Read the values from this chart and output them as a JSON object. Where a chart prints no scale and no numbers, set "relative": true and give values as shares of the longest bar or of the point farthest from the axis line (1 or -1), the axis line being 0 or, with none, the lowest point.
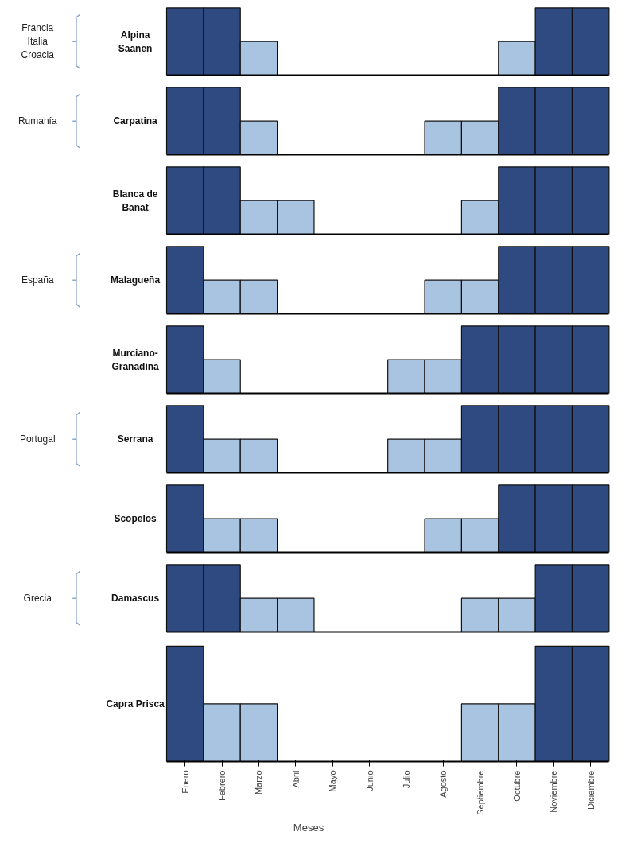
{
  "chart_data": [
    {
      "type": "bar",
      "relative": true,
      "ylabel": "Alpina\nSaanen",
      "annotations": [
        "Francia\nItalia\nCroacia"
      ],
      "tick_labels": false,
      "categories": [
        "Enero",
        "Febrero",
        "Marzo",
        "Abril",
        "Mayo",
        "Junio",
        "Julio",
        "Agosto",
        "Septiembre",
        "Octubre",
        "Noviembre",
        "Diciembre"
      ],
      "values": [
        1,
        1,
        0.5,
        0,
        0,
        0,
        0,
        0,
        0,
        0.5,
        1,
        1
      ],
      "colors": [
        "#2e4a80",
        "#2e4a80",
        "#a9c4e0",
        "#a9c4e0",
        "#a9c4e0",
        "#a9c4e0",
        "#a9c4e0",
        "#a9c4e0",
        "#a9c4e0",
        "#a9c4e0",
        "#2e4a80",
        "#2e4a80"
      ]
    },
    {
      "type": "bar",
      "relative": true,
      "ylabel": "Carpatina",
      "annotations": [
        "Rumanía"
      ],
      "tick_labels": false,
      "categories": [
        "Enero",
        "Febrero",
        "Marzo",
        "Abril",
        "Mayo",
        "Junio",
        "Julio",
        "Agosto",
        "Septiembre",
        "Octubre",
        "Noviembre",
        "Diciembre"
      ],
      "values": [
        1,
        1,
        0.5,
        0,
        0,
        0,
        0,
        0.5,
        0.5,
        1,
        1,
        1
      ],
      "colors": [
        "#2e4a80",
        "#2e4a80",
        "#a9c4e0",
        "#a9c4e0",
        "#a9c4e0",
        "#a9c4e0",
        "#a9c4e0",
        "#a9c4e0",
        "#a9c4e0",
        "#2e4a80",
        "#2e4a80",
        "#2e4a80"
      ]
    },
    {
      "type": "bar",
      "relative": true,
      "ylabel": "Blanca de\nBanat",
      "tick_labels": false,
      "categories": [
        "Enero",
        "Febrero",
        "Marzo",
        "Abril",
        "Mayo",
        "Junio",
        "Julio",
        "Agosto",
        "Septiembre",
        "Octubre",
        "Noviembre",
        "Diciembre"
      ],
      "values": [
        1,
        1,
        0.5,
        0.5,
        0,
        0,
        0,
        0,
        0.5,
        1,
        1,
        1
      ],
      "colors": [
        "#2e4a80",
        "#2e4a80",
        "#a9c4e0",
        "#a9c4e0",
        "#a9c4e0",
        "#a9c4e0",
        "#a9c4e0",
        "#a9c4e0",
        "#a9c4e0",
        "#2e4a80",
        "#2e4a80",
        "#2e4a80"
      ]
    },
    {
      "type": "bar",
      "relative": true,
      "ylabel": "Malagueña",
      "annotations": [
        "España"
      ],
      "tick_labels": false,
      "categories": [
        "Enero",
        "Febrero",
        "Marzo",
        "Abril",
        "Mayo",
        "Junio",
        "Julio",
        "Agosto",
        "Septiembre",
        "Octubre",
        "Noviembre",
        "Diciembre"
      ],
      "values": [
        1,
        0.5,
        0.5,
        0,
        0,
        0,
        0,
        0.5,
        0.5,
        1,
        1,
        1
      ],
      "colors": [
        "#2e4a80",
        "#a9c4e0",
        "#a9c4e0",
        "#a9c4e0",
        "#a9c4e0",
        "#a9c4e0",
        "#a9c4e0",
        "#a9c4e0",
        "#a9c4e0",
        "#2e4a80",
        "#2e4a80",
        "#2e4a80"
      ]
    },
    {
      "type": "bar",
      "relative": true,
      "ylabel": "Murciano-\nGranadina",
      "tick_labels": false,
      "categories": [
        "Enero",
        "Febrero",
        "Marzo",
        "Abril",
        "Mayo",
        "Junio",
        "Julio",
        "Agosto",
        "Septiembre",
        "Octubre",
        "Noviembre",
        "Diciembre"
      ],
      "values": [
        1,
        0.5,
        0,
        0,
        0,
        0,
        0.5,
        0.5,
        1,
        1,
        1,
        1
      ],
      "colors": [
        "#2e4a80",
        "#a9c4e0",
        "#a9c4e0",
        "#a9c4e0",
        "#a9c4e0",
        "#a9c4e0",
        "#a9c4e0",
        "#a9c4e0",
        "#2e4a80",
        "#2e4a80",
        "#2e4a80",
        "#2e4a80"
      ]
    },
    {
      "type": "bar",
      "relative": true,
      "ylabel": "Serrana",
      "annotations": [
        "Portugal"
      ],
      "tick_labels": false,
      "categories": [
        "Enero",
        "Febrero",
        "Marzo",
        "Abril",
        "Mayo",
        "Junio",
        "Julio",
        "Agosto",
        "Septiembre",
        "Octubre",
        "Noviembre",
        "Diciembre"
      ],
      "values": [
        1,
        0.5,
        0.5,
        0,
        0,
        0,
        0.5,
        0.5,
        1,
        1,
        1,
        1
      ],
      "colors": [
        "#2e4a80",
        "#a9c4e0",
        "#a9c4e0",
        "#a9c4e0",
        "#a9c4e0",
        "#a9c4e0",
        "#a9c4e0",
        "#a9c4e0",
        "#2e4a80",
        "#2e4a80",
        "#2e4a80",
        "#2e4a80"
      ]
    },
    {
      "type": "bar",
      "relative": true,
      "ylabel": "Scopelos",
      "tick_labels": false,
      "categories": [
        "Enero",
        "Febrero",
        "Marzo",
        "Abril",
        "Mayo",
        "Junio",
        "Julio",
        "Agosto",
        "Septiembre",
        "Octubre",
        "Noviembre",
        "Diciembre"
      ],
      "values": [
        1,
        0.5,
        0.5,
        0,
        0,
        0,
        0,
        0.5,
        0.5,
        1,
        1,
        1
      ],
      "colors": [
        "#2e4a80",
        "#a9c4e0",
        "#a9c4e0",
        "#a9c4e0",
        "#a9c4e0",
        "#a9c4e0",
        "#a9c4e0",
        "#a9c4e0",
        "#a9c4e0",
        "#2e4a80",
        "#2e4a80",
        "#2e4a80"
      ]
    },
    {
      "type": "bar",
      "relative": true,
      "ylabel": "Damascus",
      "annotations": [
        "Grecia"
      ],
      "tick_labels": false,
      "categories": [
        "Enero",
        "Febrero",
        "Marzo",
        "Abril",
        "Mayo",
        "Junio",
        "Julio",
        "Agosto",
        "Septiembre",
        "Octubre",
        "Noviembre",
        "Diciembre"
      ],
      "values": [
        1,
        1,
        0.5,
        0.5,
        0,
        0,
        0,
        0,
        0.5,
        0.5,
        1,
        1
      ],
      "colors": [
        "#2e4a80",
        "#2e4a80",
        "#a9c4e0",
        "#a9c4e0",
        "#a9c4e0",
        "#a9c4e0",
        "#a9c4e0",
        "#a9c4e0",
        "#a9c4e0",
        "#a9c4e0",
        "#2e4a80",
        "#2e4a80"
      ]
    },
    {
      "type": "bar",
      "relative": true,
      "ylabel": "Capra Prisca",
      "xlabel": "Meses",
      "tick_labels": "x",
      "categories": [
        "Enero",
        "Febrero",
        "Marzo",
        "Abril",
        "Mayo",
        "Junio",
        "Julio",
        "Agosto",
        "Septiembre",
        "Octubre",
        "Noviembre",
        "Diciembre"
      ],
      "values": [
        1,
        0.5,
        0.5,
        0,
        0,
        0,
        0,
        0,
        0.5,
        0.5,
        1,
        1
      ],
      "colors": [
        "#2e4a80",
        "#a9c4e0",
        "#a9c4e0",
        "#a9c4e0",
        "#a9c4e0",
        "#a9c4e0",
        "#a9c4e0",
        "#a9c4e0",
        "#a9c4e0",
        "#a9c4e0",
        "#2e4a80",
        "#2e4a80"
      ]
    }
  ]
}
